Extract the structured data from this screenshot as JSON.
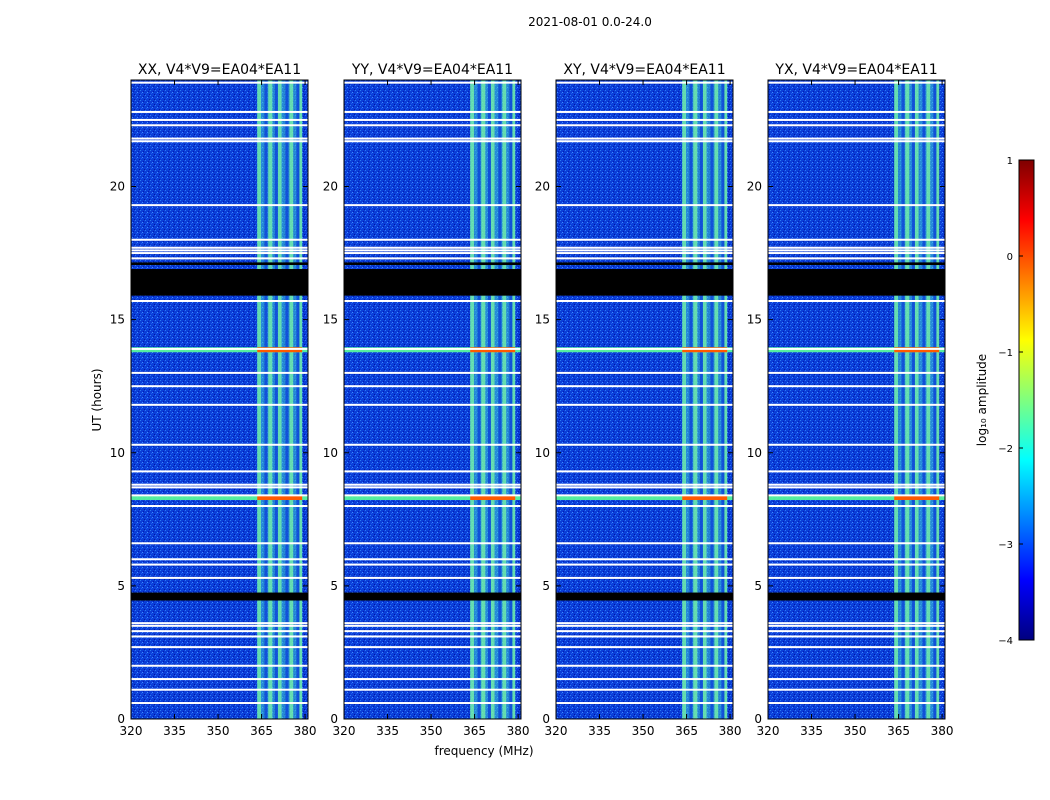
{
  "figure": {
    "suptitle": "2021-08-01 0.0-24.0",
    "xlabel": "frequency (MHz)",
    "ylabel": "UT (hours)"
  },
  "chart_data": {
    "type": "heatmap",
    "panels": [
      {
        "title": "XX, V4*V9=EA04*EA11"
      },
      {
        "title": "YY, V4*V9=EA04*EA11"
      },
      {
        "title": "XY, V4*V9=EA04*EA11"
      },
      {
        "title": "YX, V4*V9=EA04*EA11"
      }
    ],
    "x_range": [
      320,
      381
    ],
    "y_range": [
      0,
      24
    ],
    "x_ticks": [
      320,
      335,
      350,
      365,
      380
    ],
    "y_ticks": [
      0,
      5,
      10,
      15,
      20
    ],
    "colorbar": {
      "label": "log₁₀ amplitude",
      "range": [
        -4,
        1
      ],
      "ticks": [
        1,
        0,
        -1,
        -2,
        -3,
        -4
      ],
      "tick_labels": [
        "1",
        "0",
        "−1",
        "−2",
        "−3",
        "−4"
      ],
      "colormap": [
        "#00007f",
        "#0000ff",
        "#007fff",
        "#00ffff",
        "#7fff7f",
        "#ffff00",
        "#ff7f00",
        "#ff0000",
        "#7f0000"
      ]
    },
    "colors": {
      "background_low": "#0a3cd6",
      "band_signal": "#3ec8d8",
      "flagged_white": "#ffffff",
      "flagged_black": "#000000",
      "rfi_high": "#ff5a00"
    },
    "rfi_band_mhz": [
      363.5,
      379
    ],
    "rfi_subchannels_mhz": [
      363.5,
      364.8,
      367.3,
      368.7,
      370.6,
      371.9,
      374.6,
      375.9,
      378.0,
      379.0
    ],
    "flagged_white_rows_hours": [
      23.9,
      22.8,
      22.5,
      22.3,
      21.8,
      21.7,
      19.3,
      18.0,
      17.7,
      17.6,
      17.5,
      17.3,
      15.7,
      13.9,
      13.0,
      12.5,
      11.8,
      10.3,
      9.3,
      8.8,
      8.7,
      8.4,
      8.0,
      6.6,
      6.0,
      5.8,
      5.3,
      3.6,
      3.5,
      3.3,
      3.1,
      2.7,
      2.0,
      1.5,
      1.1,
      0.6
    ],
    "flagged_black_blocks_hours": [
      [
        15.9,
        16.9
      ],
      [
        17.05,
        17.15
      ],
      [
        4.45,
        4.75
      ]
    ],
    "high_amplitude_rows_hours": [
      8.3,
      13.85
    ]
  }
}
